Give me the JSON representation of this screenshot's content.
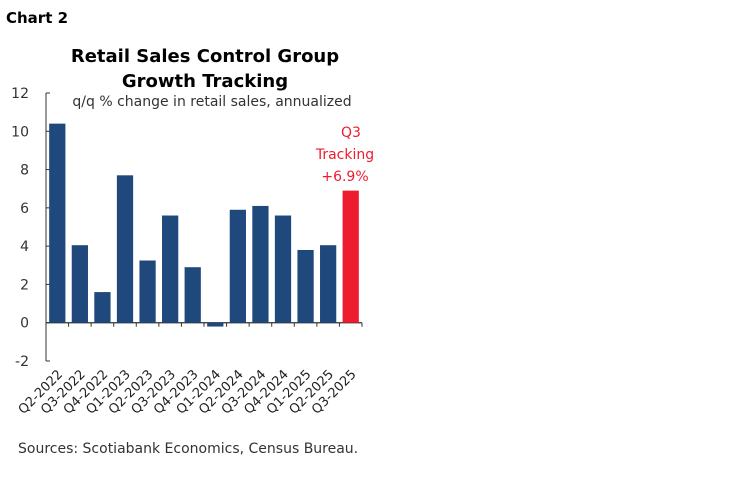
{
  "header": {
    "label": "Chart 2"
  },
  "chart_data": {
    "type": "bar",
    "title": "Retail Sales Control Group Growth Tracking",
    "title_lines": [
      "Retail Sales Control Group",
      "Growth Tracking"
    ],
    "subtitle": "q/q % change in retail sales, annualized",
    "categories": [
      "Q2-2022",
      "Q3-2022",
      "Q4-2022",
      "Q1-2023",
      "Q2-2023",
      "Q3-2023",
      "Q4-2023",
      "Q1-2024",
      "Q2-2024",
      "Q3-2024",
      "Q4-2024",
      "Q1-2025",
      "Q2-2025",
      "Q3-2025"
    ],
    "values": [
      10.4,
      4.05,
      1.6,
      7.7,
      3.25,
      5.6,
      2.9,
      -0.2,
      5.9,
      6.1,
      5.6,
      3.8,
      4.05,
      6.9
    ],
    "ylim": [
      -2,
      12
    ],
    "yticks": [
      -2,
      0,
      2,
      4,
      6,
      8,
      10,
      12
    ],
    "grid": false,
    "colors": {
      "bar": "#1f497d",
      "highlight": "#ed1c2e"
    },
    "highlight_index": 13,
    "annotation": [
      "Q3",
      "Tracking",
      "+6.9%"
    ],
    "source": "Sources: Scotiabank Economics, Census Bureau."
  }
}
